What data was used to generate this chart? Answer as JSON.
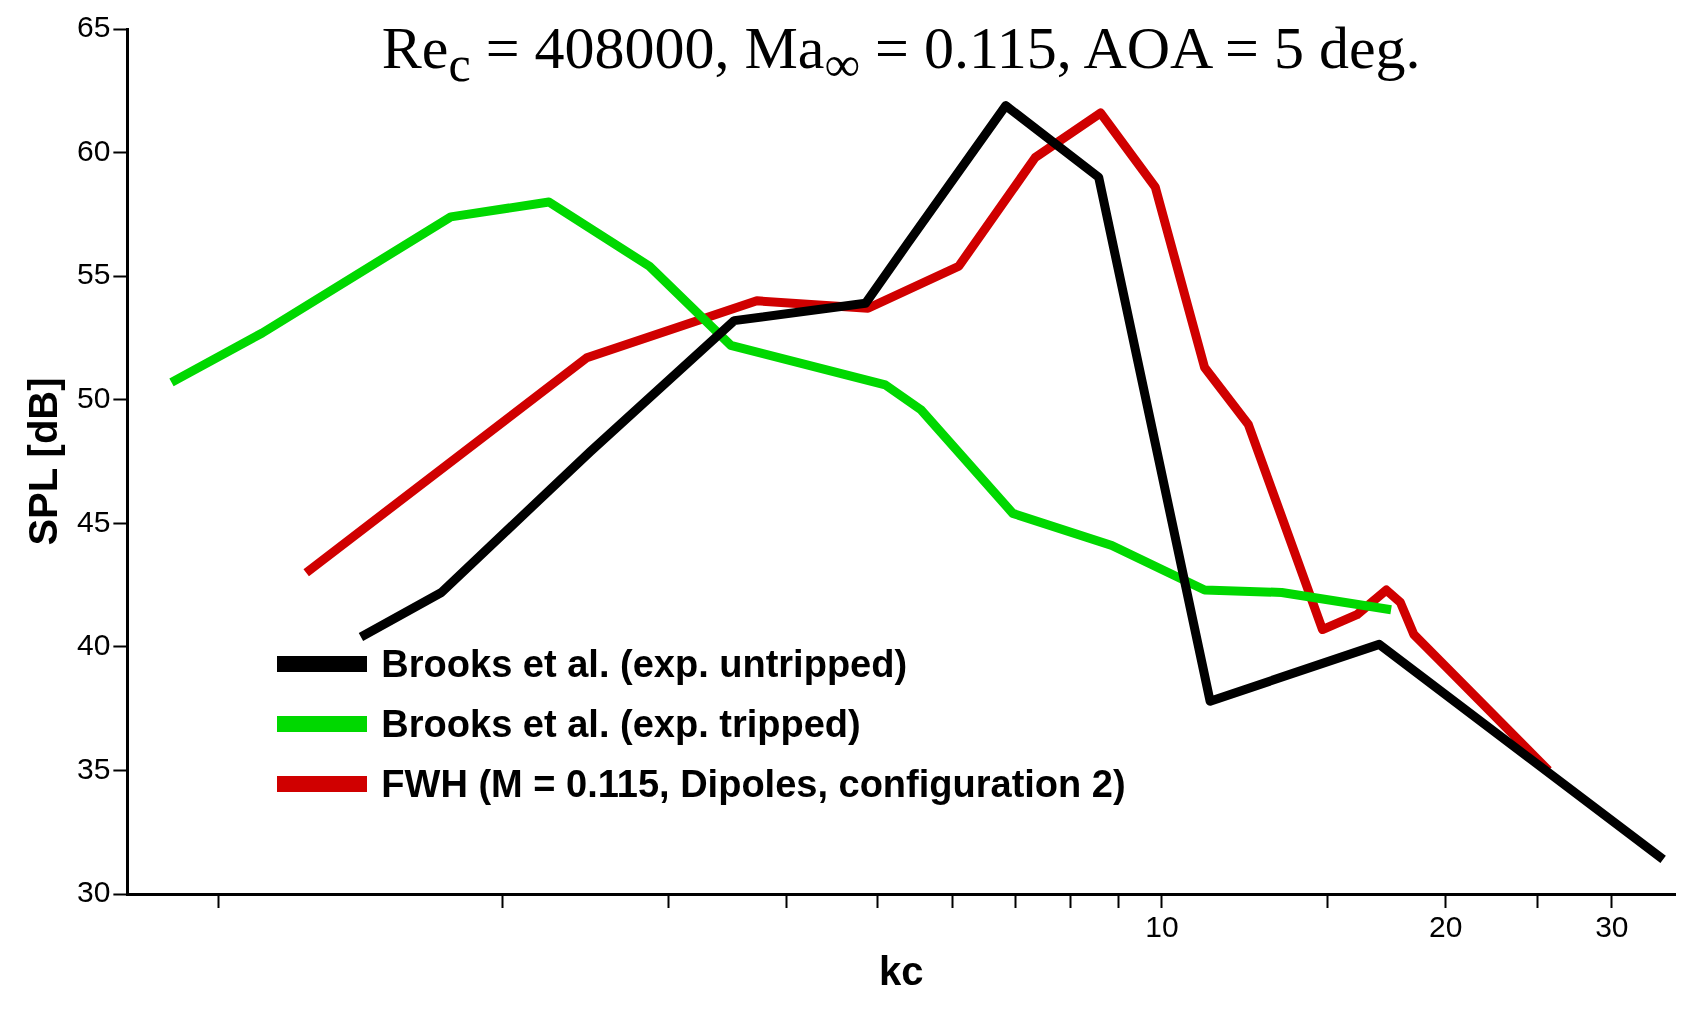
{
  "chart_data": {
    "type": "line",
    "title": "Re$_{c}$ = 408000, Ma$_{∞}$ = 0.115, AOA = 5 deg.",
    "xlabel": "kc",
    "ylabel": "SPL [dB]",
    "log": "x",
    "grid": false,
    "legend": "bottom left",
    "marker": "none",
    "line_style": "solid",
    "xlim": [
      0.8,
      35
    ],
    "ylim": [
      30,
      65
    ],
    "xticks": [
      {
        "value": 1,
        "label": null
      },
      {
        "value": 2,
        "label": null
      },
      {
        "value": 3,
        "label": null
      },
      {
        "value": 4,
        "label": null
      },
      {
        "value": 5,
        "label": null
      },
      {
        "value": 6,
        "label": null
      },
      {
        "value": 7,
        "label": null
      },
      {
        "value": 8,
        "label": null
      },
      {
        "value": 9,
        "label": null
      },
      10,
      {
        "value": 15,
        "label": null
      },
      20,
      {
        "value": 25,
        "label": null
      },
      30
    ],
    "yticks": [
      30,
      35,
      40,
      45,
      50,
      55,
      60,
      65
    ],
    "series": [
      {
        "name": "Brooks et al. (exp. untripped)",
        "color": "#000000",
        "x": [
          1.415,
          1.722,
          2.477,
          3.52,
          4.85,
          5.37,
          6.83,
          8.57,
          11.25,
          17.0,
          34.0
        ],
        "values": [
          40.4,
          42.2,
          47.9,
          53.2,
          53.9,
          56.3,
          61.9,
          59.0,
          37.8,
          40.1,
          31.4
        ]
      },
      {
        "name": "Brooks et al. (exp. tripped)",
        "color": "#00d800",
        "x": [
          0.891,
          1.112,
          1.762,
          2.239,
          2.862,
          3.49,
          5.09,
          5.55,
          6.95,
          8.85,
          11.1,
          13.4,
          17.5
        ],
        "values": [
          50.7,
          52.7,
          57.4,
          58.0,
          55.4,
          52.2,
          50.6,
          49.6,
          45.4,
          44.1,
          42.3,
          42.2,
          41.5
        ]
      },
      {
        "name": "FWH (M = 0.115, Dipoles, configuration 2)",
        "color": "#d00000",
        "x": [
          1.238,
          2.456,
          3.72,
          4.88,
          6.09,
          7.34,
          8.61,
          9.84,
          11.1,
          12.35,
          14.8,
          16.1,
          17.3,
          17.9,
          18.5,
          20.0,
          25.7
        ],
        "values": [
          43.0,
          51.7,
          54.0,
          53.7,
          55.4,
          59.8,
          61.6,
          58.6,
          51.3,
          49.0,
          40.7,
          41.3,
          42.3,
          41.8,
          40.5,
          39.2,
          35.0
        ]
      }
    ]
  }
}
